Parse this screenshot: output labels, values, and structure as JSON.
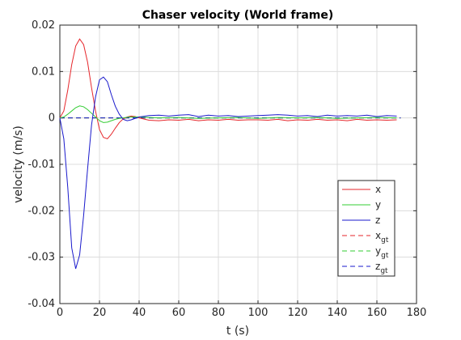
{
  "chart_data": {
    "type": "line",
    "title": "Chaser velocity (World frame)",
    "xlabel": "t (s)",
    "ylabel": "velocity (m/s)",
    "xlim": [
      0,
      180
    ],
    "ylim": [
      -0.04,
      0.02
    ],
    "xticks": [
      0,
      20,
      40,
      60,
      80,
      100,
      120,
      140,
      160,
      180
    ],
    "yticks": [
      0.02,
      0.01,
      0,
      -0.01,
      -0.02,
      -0.03,
      -0.04
    ],
    "xtick_labels": [
      "0",
      "20",
      "40",
      "60",
      "80",
      "100",
      "120",
      "140",
      "160",
      "180"
    ],
    "ytick_labels": [
      "0.02",
      "0.01",
      "0",
      "-0.01",
      "-0.02",
      "-0.03",
      "-0.04"
    ],
    "grid": true,
    "legend_position": "lower-right",
    "colors": {
      "red": "#e6262b",
      "green": "#33cc33",
      "blue": "#1a1acc"
    },
    "series": [
      {
        "name": "x",
        "base": "x",
        "sub": "",
        "color": "red",
        "dash": false,
        "x": [
          0,
          2,
          4,
          6,
          8,
          10,
          12,
          14,
          16,
          18,
          20,
          22,
          24,
          26,
          28,
          30,
          32,
          34,
          36,
          38,
          40,
          45,
          50,
          55,
          60,
          65,
          70,
          75,
          80,
          85,
          90,
          95,
          100,
          105,
          110,
          115,
          120,
          125,
          130,
          135,
          140,
          145,
          150,
          155,
          160,
          165,
          170
        ],
        "y": [
          0,
          0.0015,
          0.006,
          0.0115,
          0.0155,
          0.017,
          0.0158,
          0.012,
          0.0065,
          0.0015,
          -0.0025,
          -0.0042,
          -0.0045,
          -0.0035,
          -0.0022,
          -0.001,
          -0.0002,
          0.0002,
          0.0004,
          0.0003,
          0,
          -0.0005,
          -0.0006,
          -0.0004,
          -0.0005,
          -0.0003,
          -0.0006,
          -0.0004,
          -0.0005,
          -0.0003,
          -0.0005,
          -0.0004,
          -0.0004,
          -0.0005,
          -0.0003,
          -0.0006,
          -0.0004,
          -0.0005,
          -0.0003,
          -0.0005,
          -0.0004,
          -0.0006,
          -0.0003,
          -0.0005,
          -0.0004,
          -0.0005,
          -0.0004
        ]
      },
      {
        "name": "y",
        "base": "y",
        "sub": "",
        "color": "green",
        "dash": false,
        "x": [
          0,
          2,
          4,
          6,
          8,
          10,
          12,
          14,
          16,
          18,
          20,
          22,
          24,
          26,
          28,
          30,
          32,
          35,
          40,
          50,
          60,
          70,
          80,
          90,
          100,
          110,
          120,
          130,
          140,
          150,
          160,
          170
        ],
        "y": [
          0,
          0.0002,
          0.0008,
          0.0015,
          0.0022,
          0.0026,
          0.0024,
          0.0018,
          0.001,
          0.0002,
          -0.0006,
          -0.001,
          -0.0009,
          -0.0006,
          -0.0003,
          -0.0001,
          0,
          0.0002,
          0.0002,
          0,
          0.0001,
          -0.0001,
          0,
          0.0001,
          -0.0001,
          0.0001,
          0,
          0.0001,
          -0.0001,
          0,
          0.0001,
          0
        ]
      },
      {
        "name": "z",
        "base": "z",
        "sub": "",
        "color": "blue",
        "dash": false,
        "x": [
          0,
          2,
          4,
          6,
          8,
          10,
          12,
          14,
          16,
          18,
          20,
          22,
          24,
          26,
          28,
          30,
          32,
          34,
          36,
          38,
          40,
          45,
          50,
          55,
          60,
          65,
          70,
          75,
          80,
          85,
          90,
          95,
          100,
          105,
          110,
          115,
          120,
          125,
          130,
          135,
          140,
          145,
          150,
          155,
          160,
          165,
          170
        ],
        "y": [
          0,
          -0.0045,
          -0.015,
          -0.028,
          -0.0325,
          -0.0295,
          -0.021,
          -0.011,
          -0.0015,
          0.0045,
          0.0082,
          0.0088,
          0.0078,
          0.005,
          0.0025,
          0.0008,
          -0.0003,
          -0.0006,
          -0.0004,
          -0.0001,
          0.0002,
          0.0005,
          0.0006,
          0.0004,
          0.0006,
          0.0007,
          0.0003,
          0.0006,
          0.0004,
          0.0005,
          0.0003,
          0.0004,
          0.0005,
          0.0006,
          0.0007,
          0.0006,
          0.0004,
          0.0005,
          0.0003,
          0.0006,
          0.0004,
          0.0005,
          0.0004,
          0.0006,
          0.0003,
          0.0005,
          0.0004
        ]
      },
      {
        "name": "x_gt",
        "base": "x",
        "sub": "gt",
        "color": "red",
        "dash": true,
        "x": [
          0,
          172
        ],
        "y": [
          0,
          0
        ]
      },
      {
        "name": "y_gt",
        "base": "y",
        "sub": "gt",
        "color": "green",
        "dash": true,
        "x": [
          0,
          172
        ],
        "y": [
          0,
          0
        ]
      },
      {
        "name": "z_gt",
        "base": "z",
        "sub": "gt",
        "color": "blue",
        "dash": true,
        "x": [
          0,
          172
        ],
        "y": [
          0,
          0
        ]
      }
    ]
  }
}
